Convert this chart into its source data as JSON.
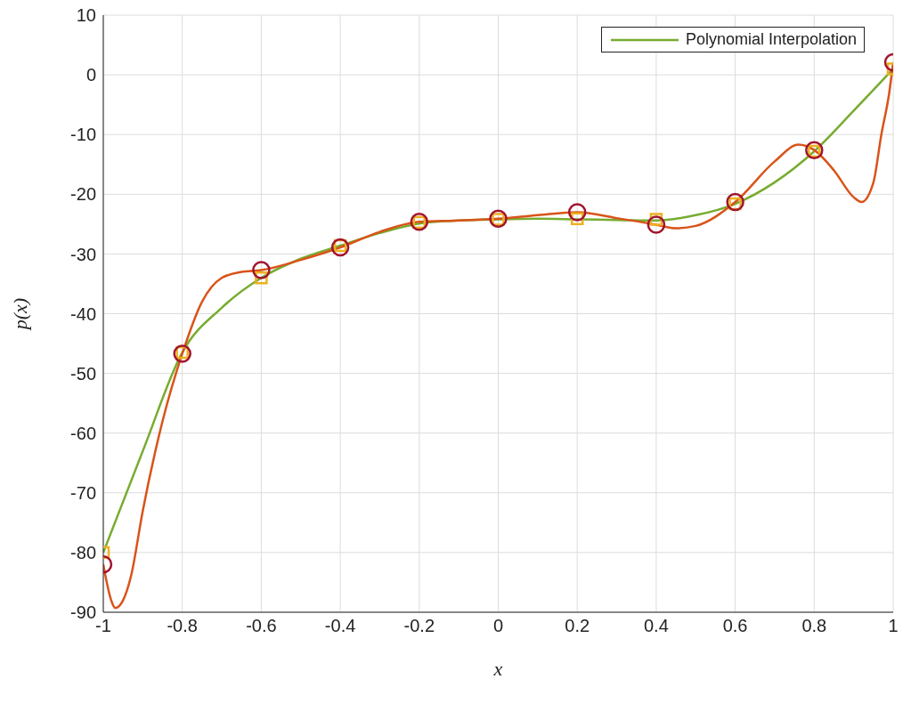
{
  "chart_data": {
    "type": "line",
    "xlabel": "x",
    "ylabel": "p(x)",
    "xlim": [
      -1,
      1
    ],
    "ylim": [
      -90,
      10
    ],
    "xticks": [
      -1,
      -0.8,
      -0.6,
      -0.4,
      -0.2,
      0,
      0.2,
      0.4,
      0.6,
      0.8,
      1
    ],
    "yticks": [
      -90,
      -80,
      -70,
      -60,
      -50,
      -40,
      -30,
      -20,
      -10,
      0,
      10
    ],
    "grid": true,
    "legend": "top right",
    "series": [
      {
        "name": "Polynomial Interpolation",
        "color": "#77ac30",
        "marker": "none",
        "x": [
          -1,
          -0.9,
          -0.8,
          -0.7,
          -0.6,
          -0.5,
          -0.4,
          -0.3,
          -0.2,
          -0.1,
          0,
          0.1,
          0.2,
          0.3,
          0.4,
          0.5,
          0.6,
          0.7,
          0.8,
          0.9,
          1
        ],
        "values": [
          -80,
          -63,
          -46.5,
          -39,
          -34,
          -30.8,
          -28.6,
          -26.5,
          -24.9,
          -24.4,
          -24.2,
          -24.1,
          -24.2,
          -24.3,
          -24.4,
          -23.5,
          -21.6,
          -18,
          -12.8,
          -6,
          1
        ]
      },
      {
        "color": "#d95319",
        "marker": "none",
        "x": [
          -1,
          -0.98,
          -0.97,
          -0.95,
          -0.93,
          -0.9,
          -0.85,
          -0.8,
          -0.75,
          -0.7,
          -0.65,
          -0.6,
          -0.5,
          -0.4,
          -0.3,
          -0.2,
          -0.1,
          0,
          0.1,
          0.2,
          0.3,
          0.4,
          0.45,
          0.5,
          0.6,
          0.7,
          0.76,
          0.8,
          0.85,
          0.9,
          0.92,
          0.95,
          0.97,
          0.99,
          1
        ],
        "values": [
          -82,
          -88,
          -89.3,
          -88,
          -84,
          -73,
          -58,
          -46.7,
          -38,
          -34,
          -33,
          -32.7,
          -31,
          -28.9,
          -26.3,
          -24.6,
          -24.4,
          -24.1,
          -23.5,
          -23,
          -24,
          -25.1,
          -25.7,
          -25.3,
          -21.3,
          -14.5,
          -11.7,
          -12.6,
          -16,
          -20.5,
          -21.3,
          -18,
          -10,
          -3,
          2.1
        ]
      },
      {
        "type": "scatter",
        "color": "#edb120",
        "marker": "square",
        "x": [
          -1,
          -0.8,
          -0.6,
          -0.4,
          -0.2,
          0,
          0.2,
          0.4,
          0.6,
          0.8,
          1
        ],
        "values": [
          -80,
          -46.5,
          -34,
          -28.6,
          -24.7,
          -24.2,
          -24.1,
          -24.2,
          -21.6,
          -12.8,
          1
        ]
      },
      {
        "type": "scatter",
        "color": "#a2142f",
        "marker": "circle",
        "x": [
          -1,
          -0.8,
          -0.6,
          -0.4,
          -0.2,
          0,
          0.2,
          0.4,
          0.6,
          0.8,
          1
        ],
        "values": [
          -82,
          -46.7,
          -32.7,
          -28.9,
          -24.6,
          -24.1,
          -23,
          -25.1,
          -21.3,
          -12.6,
          2.1
        ]
      }
    ]
  }
}
